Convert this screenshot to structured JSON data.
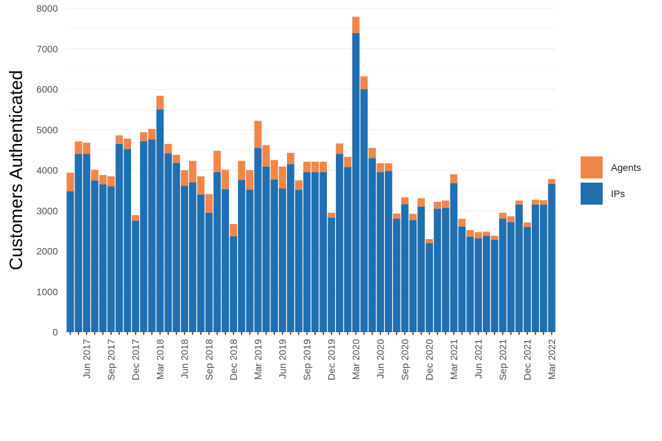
{
  "chart_data": {
    "type": "bar",
    "stacked": true,
    "title": "",
    "xlabel": "",
    "ylabel": "Customers Authenticated",
    "ylim": [
      0,
      8000
    ],
    "yticks": [
      0,
      1000,
      2000,
      3000,
      4000,
      5000,
      6000,
      7000,
      8000
    ],
    "grid": true,
    "legend_position": "right",
    "categories": [
      "Apr 2017",
      "May 2017",
      "Jun 2017",
      "Jul 2017",
      "Aug 2017",
      "Sep 2017",
      "Oct 2017",
      "Nov 2017",
      "Dec 2017",
      "Jan 2018",
      "Feb 2018",
      "Mar 2018",
      "Apr 2018",
      "May 2018",
      "Jun 2018",
      "Jul 2018",
      "Aug 2018",
      "Sep 2018",
      "Oct 2018",
      "Nov 2018",
      "Dec 2018",
      "Jan 2019",
      "Feb 2019",
      "Mar 2019",
      "Apr 2019",
      "May 2019",
      "Jun 2019",
      "Jul 2019",
      "Aug 2019",
      "Sep 2019",
      "Oct 2019",
      "Nov 2019",
      "Dec 2019",
      "Jan 2020",
      "Feb 2020",
      "Mar 2020",
      "Apr 2020",
      "May 2020",
      "Jun 2020",
      "Jul 2020",
      "Aug 2020",
      "Sep 2020",
      "Oct 2020",
      "Nov 2020",
      "Dec 2020",
      "Jan 2021",
      "Feb 2021",
      "Mar 2021",
      "Apr 2021",
      "May 2021",
      "Jun 2021",
      "Jul 2021",
      "Aug 2021",
      "Sep 2021",
      "Oct 2021",
      "Nov 2021",
      "Dec 2021",
      "Jan 2022",
      "Feb 2022",
      "Mar 2022"
    ],
    "x_tick_labels": {
      "Jun 2017": "Jun 2017",
      "Sep 2017": "Sep 2017",
      "Dec 2017": "Dec 2017",
      "Mar 2018": "Mar 2018",
      "Jun 2018": "Jun 2018",
      "Sep 2018": "Sep 2018",
      "Dec 2018": "Dec 2018",
      "Mar 2019": "Mar 2019",
      "Jun 2019": "Jun 2019",
      "Sep 2019": "Sep 2019",
      "Dec 2019": "Dec 2019",
      "Mar 2020": "Mar 2020",
      "Jun 2020": "Jun 2020",
      "Sep 2020": "Sep 2020",
      "Dec 2020": "Dec 2020",
      "Mar 2021": "Mar 2021",
      "Jun 2021": "Jun 2021",
      "Sep 2021": "Sep 2021",
      "Dec 2021": "Dec 2021",
      "Mar 2022": "Mar 2022"
    },
    "series": [
      {
        "name": "IPs",
        "color": "#1f6fb1",
        "values": [
          3480,
          4400,
          4400,
          3750,
          3650,
          3600,
          4650,
          4520,
          2750,
          4720,
          4760,
          5500,
          4420,
          4180,
          3620,
          3700,
          3400,
          2950,
          3950,
          3530,
          2370,
          3760,
          3520,
          4550,
          4090,
          3770,
          3550,
          4150,
          3520,
          3950,
          3950,
          3950,
          2830,
          4400,
          4080,
          7390,
          6000,
          4300,
          3950,
          3980,
          2800,
          3160,
          2770,
          3100,
          2200,
          3050,
          3070,
          3680,
          2610,
          2360,
          2320,
          2380,
          2280,
          2800,
          2720,
          3150,
          2600,
          3150,
          3150,
          3660
        ]
      },
      {
        "name": "Agents",
        "color": "#f0864a",
        "values": [
          460,
          310,
          280,
          260,
          230,
          250,
          210,
          260,
          140,
          220,
          260,
          340,
          230,
          200,
          380,
          530,
          450,
          460,
          530,
          480,
          300,
          470,
          480,
          670,
          530,
          480,
          540,
          280,
          230,
          260,
          260,
          260,
          120,
          260,
          250,
          400,
          320,
          250,
          220,
          190,
          130,
          170,
          150,
          210,
          100,
          170,
          180,
          220,
          190,
          160,
          150,
          100,
          100,
          150,
          140,
          100,
          110,
          120,
          110,
          120
        ]
      }
    ]
  }
}
